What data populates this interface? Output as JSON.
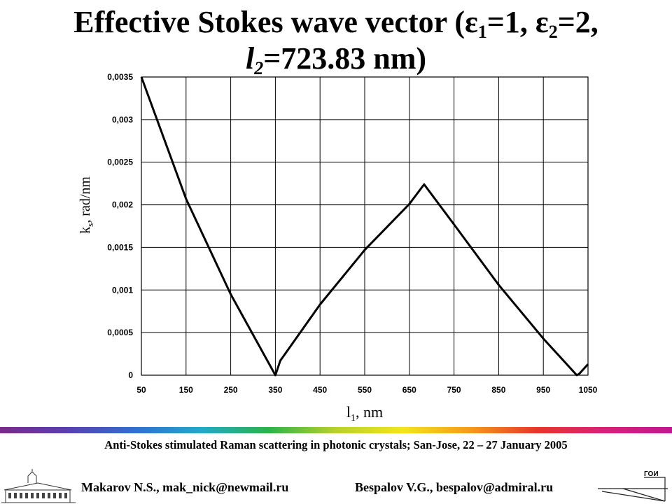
{
  "title": {
    "part1": "Effective Stokes wave vector (",
    "eps_symbol": "ε",
    "sub1": "1",
    "eq1": "=1, ",
    "sub2": "2",
    "eq2": "=2,",
    "l_symbol": "l",
    "sub3": "2",
    "eq3": "=723.83 nm)"
  },
  "chart_data": {
    "type": "line",
    "x_ticks": [
      "50",
      "150",
      "250",
      "350",
      "450",
      "550",
      "650",
      "750",
      "850",
      "950",
      "1050"
    ],
    "y_ticks": [
      "0",
      "0,0005",
      "0,001",
      "0,0015",
      "0,002",
      "0,0025",
      "0,003",
      "0,0035"
    ],
    "xlim": [
      50,
      1050
    ],
    "ylim": [
      0,
      0.0035
    ],
    "grid": true,
    "xlabel": {
      "main": "l",
      "sub": "1",
      "rest": ", nm"
    },
    "ylabel": {
      "main": "k",
      "sub": "s",
      "rest": ",  rad/nm"
    },
    "series": [
      {
        "x": [
          50,
          150,
          250,
          350,
          361,
          450,
          550,
          650,
          683,
          750,
          850,
          950,
          1025,
          1031,
          1050
        ],
        "y": [
          0.0035,
          0.00207,
          0.00095,
          0.0,
          0.00017,
          0.00083,
          0.00147,
          0.00201,
          0.00224,
          0.00177,
          0.00106,
          0.00043,
          0.0,
          2e-05,
          0.00013
        ],
        "color": "#000000"
      }
    ]
  },
  "footer": {
    "conference": "Anti-Stokes stimulated Raman scattering in photonic crystals; San-Jose, 22 – 27 January  2005",
    "author1": "Makarov N.S., mak_nick@newmail.ru",
    "author2": "Bespalov V.G., bespalov@admiral.ru",
    "logo_text": "ГОИ"
  }
}
